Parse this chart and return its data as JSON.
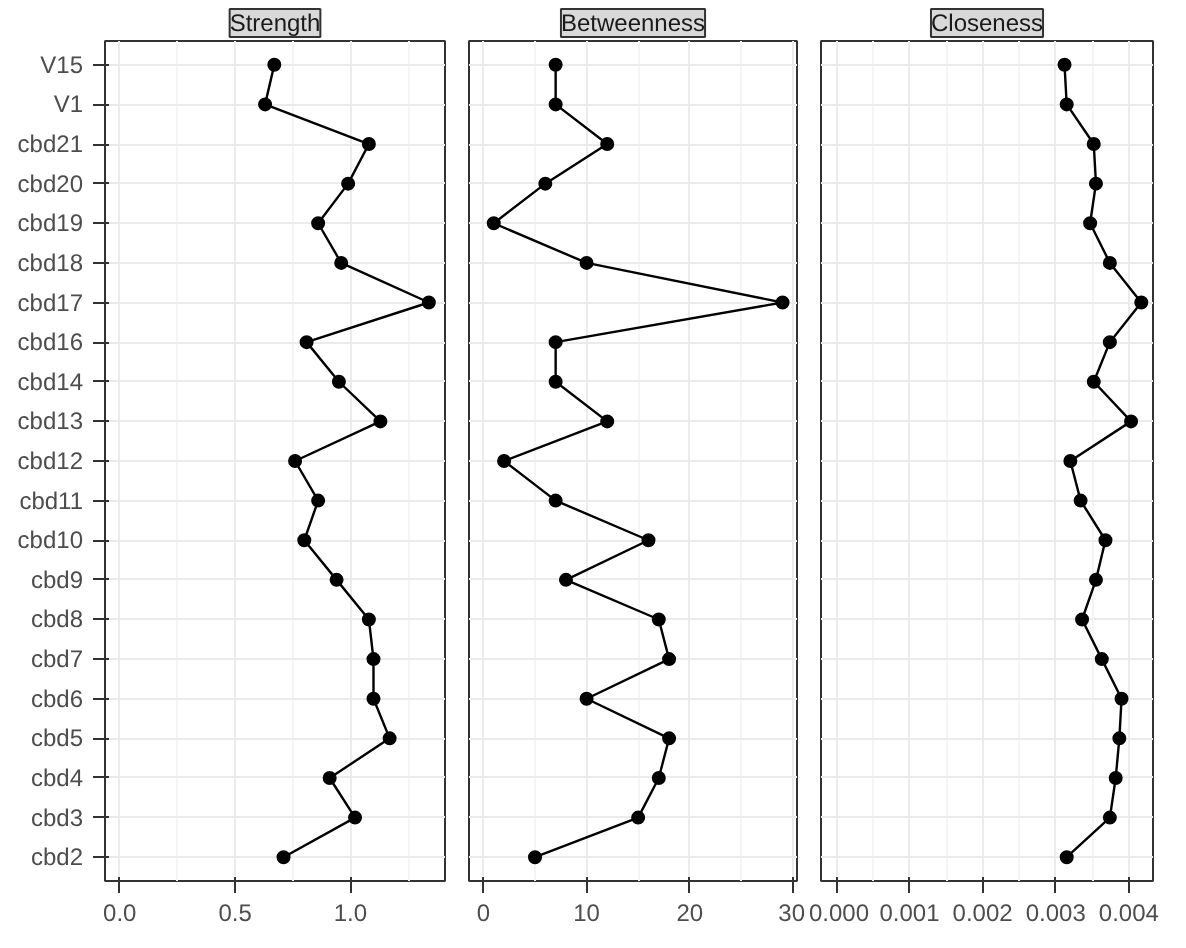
{
  "chart_data": [
    {
      "type": "line",
      "orientation": "horizontal",
      "title": "Strength",
      "categories": [
        "V15",
        "V1",
        "cbd21",
        "cbd20",
        "cbd19",
        "cbd18",
        "cbd17",
        "cbd16",
        "cbd14",
        "cbd13",
        "cbd12",
        "cbd11",
        "cbd10",
        "cbd9",
        "cbd8",
        "cbd7",
        "cbd6",
        "cbd5",
        "cbd4",
        "cbd3",
        "cbd2"
      ],
      "series": [
        {
          "color": "#000000",
          "values": [
            0.67,
            0.63,
            1.08,
            0.99,
            0.86,
            0.96,
            1.34,
            0.81,
            0.95,
            1.13,
            0.76,
            0.86,
            0.8,
            0.94,
            1.08,
            1.1,
            1.1,
            1.17,
            0.91,
            1.02,
            0.71
          ]
        }
      ],
      "xlim": [
        -0.064,
        1.41
      ],
      "xticks": [
        {
          "value": 0,
          "label": "0.0"
        },
        {
          "value": 0.5,
          "label": "0.5"
        },
        {
          "value": 1,
          "label": "1.0"
        }
      ],
      "grid": true,
      "marker": "circle",
      "line_style": "solid"
    },
    {
      "type": "line",
      "orientation": "horizontal",
      "title": "Betweenness",
      "series": [
        {
          "color": "#000000",
          "values": [
            7,
            7,
            12,
            6,
            1,
            10,
            29,
            7,
            7,
            12,
            2,
            7,
            16,
            8,
            17,
            18,
            10,
            18,
            17,
            15,
            5
          ]
        }
      ],
      "xlim": [
        -1.4,
        30.4
      ],
      "xticks": [
        0,
        10,
        20,
        30
      ],
      "grid": true,
      "marker": "circle",
      "line_style": "solid",
      "tick_labels": "x"
    },
    {
      "type": "line",
      "orientation": "horizontal",
      "title": "Closeness",
      "series": [
        {
          "color": "#000000",
          "values": [
            0.00312,
            0.00315,
            0.00352,
            0.00355,
            0.00347,
            0.00374,
            0.00417,
            0.00374,
            0.00352,
            0.00403,
            0.0032,
            0.00334,
            0.00368,
            0.00355,
            0.00336,
            0.00363,
            0.0039,
            0.00387,
            0.00382,
            0.00374,
            0.00315
          ]
        }
      ],
      "xlim": [
        -0.00021,
        0.00433
      ],
      "xticks": [
        {
          "value": 0,
          "label": "0.000"
        },
        {
          "value": 0.001,
          "label": "0.001"
        },
        {
          "value": 0.002,
          "label": "0.002"
        },
        {
          "value": 0.003,
          "label": "0.003"
        },
        {
          "value": 0.004,
          "label": "0.004"
        }
      ],
      "grid": true,
      "marker": "circle",
      "line_style": "solid",
      "tick_labels": "x"
    }
  ]
}
